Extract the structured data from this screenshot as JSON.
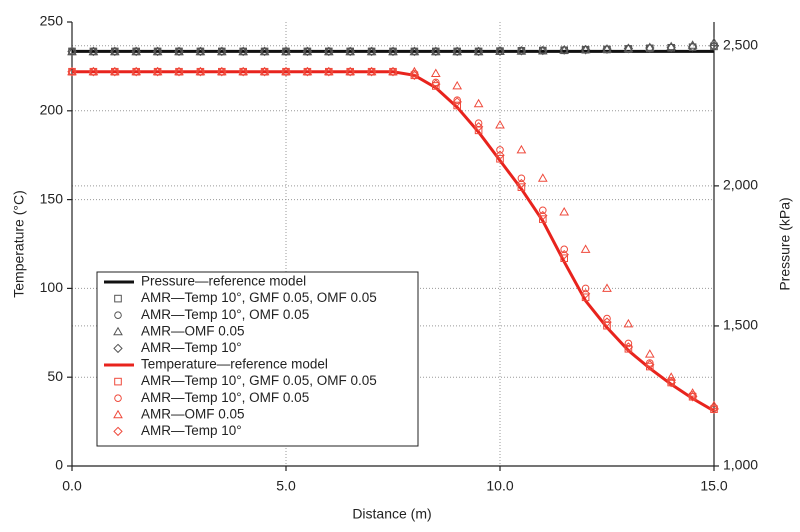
{
  "chart_data": {
    "type": "line",
    "x_label": "Distance (m)",
    "y_label": "Temperature (°C)",
    "y2_label": "Pressure (kPa)",
    "x": [
      0,
      0.5,
      1,
      1.5,
      2,
      2.5,
      3,
      3.5,
      4,
      4.5,
      5,
      5.5,
      6,
      6.5,
      7,
      7.5,
      8,
      8.5,
      9,
      9.5,
      10,
      10.5,
      11,
      11.5,
      12,
      12.5,
      13,
      13.5,
      14,
      14.5,
      15
    ],
    "xlim": [
      0,
      15
    ],
    "xticks": [
      {
        "value": 0,
        "label": "0.0"
      },
      {
        "value": 5,
        "label": "5.0"
      },
      {
        "value": 10,
        "label": "10.0"
      },
      {
        "value": 15,
        "label": "15.0"
      }
    ],
    "ylim": [
      0,
      250
    ],
    "yticks": [
      0,
      50,
      100,
      150,
      200,
      250
    ],
    "y2lim": [
      1000,
      2585
    ],
    "y2ticks": [
      {
        "value": 1000,
        "label": "1,000"
      },
      {
        "value": 1500,
        "label": "1,500"
      },
      {
        "value": 2000,
        "label": "2,000"
      },
      {
        "value": 2500,
        "label": "2,500"
      }
    ],
    "grid": true,
    "legend": "lower left",
    "series": [
      {
        "name": "Pressure—reference model",
        "color": "#111111",
        "marker": "line",
        "axis": "y2",
        "values": [
          2480,
          2480,
          2480,
          2480,
          2480,
          2480,
          2480,
          2480,
          2480,
          2480,
          2480,
          2480,
          2480,
          2480,
          2480,
          2480,
          2480,
          2480,
          2480,
          2480,
          2480,
          2480,
          2480,
          2480,
          2480,
          2480,
          2480,
          2480,
          2480,
          2480,
          2480
        ]
      },
      {
        "name": "AMR—Temp 10°, GMF 0.05, OMF 0.05",
        "color": "#555555",
        "marker": "square",
        "axis": "y2",
        "values": [
          2480,
          2480,
          2480,
          2480,
          2480,
          2480,
          2480,
          2480,
          2480,
          2480,
          2480,
          2480,
          2480,
          2480,
          2480,
          2480,
          2480,
          2480,
          2480,
          2480,
          2481,
          2482,
          2483,
          2484,
          2486,
          2487,
          2489,
          2491,
          2493,
          2495,
          2498
        ]
      },
      {
        "name": "AMR—Temp 10°, OMF 0.05",
        "color": "#555555",
        "marker": "circle",
        "axis": "y2",
        "values": [
          2481,
          2481,
          2481,
          2481,
          2481,
          2481,
          2481,
          2481,
          2481,
          2481,
          2481,
          2481,
          2481,
          2481,
          2481,
          2481,
          2481,
          2481,
          2481,
          2481,
          2482,
          2483,
          2484,
          2485,
          2487,
          2488,
          2490,
          2492,
          2494,
          2496,
          2499
        ]
      },
      {
        "name": "AMR—OMF 0.05",
        "color": "#555555",
        "marker": "triangle",
        "axis": "y2",
        "values": [
          2479,
          2479,
          2479,
          2479,
          2479,
          2479,
          2479,
          2479,
          2479,
          2479,
          2479,
          2479,
          2479,
          2479,
          2479,
          2479,
          2479,
          2479,
          2479,
          2479,
          2480,
          2481,
          2482,
          2484,
          2486,
          2488,
          2491,
          2494,
          2497,
          2502,
          2512
        ]
      },
      {
        "name": "AMR—Temp 10°",
        "color": "#555555",
        "marker": "diamond",
        "axis": "y2",
        "values": [
          2480,
          2480,
          2480,
          2480,
          2480,
          2480,
          2480,
          2480,
          2480,
          2480,
          2480,
          2480,
          2480,
          2480,
          2480,
          2480,
          2480,
          2480,
          2480,
          2480,
          2481,
          2482,
          2483,
          2485,
          2486,
          2488,
          2490,
          2492,
          2494,
          2496,
          2499
        ]
      },
      {
        "name": "Temperature—reference model",
        "color": "#e8231d",
        "marker": "line",
        "values": [
          222,
          222,
          222,
          222,
          222,
          222,
          222,
          222,
          222,
          222,
          222,
          222,
          222,
          222,
          222,
          222,
          220,
          213,
          202,
          188,
          172,
          156,
          138,
          115,
          93,
          78,
          65,
          55,
          46,
          38,
          31
        ]
      },
      {
        "name": "AMR—Temp 10°, GMF 0.05, OMF 0.05",
        "color": "#ef4a3c",
        "marker": "square",
        "values": [
          222,
          222,
          222,
          222,
          222,
          222,
          222,
          222,
          222,
          222,
          222,
          222,
          222,
          222,
          222,
          222,
          220,
          214,
          203,
          189,
          173,
          157,
          139,
          117,
          95,
          79,
          66,
          56,
          47,
          39,
          32
        ]
      },
      {
        "name": "AMR—Temp 10°, OMF 0.05",
        "color": "#ef4a3c",
        "marker": "circle",
        "values": [
          222,
          222,
          222,
          222,
          222,
          222,
          222,
          222,
          222,
          222,
          222,
          222,
          222,
          222,
          222,
          222,
          221,
          216,
          206,
          193,
          178,
          162,
          144,
          122,
          100,
          83,
          69,
          58,
          48,
          40,
          33
        ]
      },
      {
        "name": "AMR—OMF 0.05",
        "color": "#ef4a3c",
        "marker": "triangle",
        "values": [
          222,
          222,
          222,
          222,
          222,
          222,
          222,
          222,
          222,
          222,
          222,
          222,
          222,
          222,
          222,
          222,
          222,
          221,
          214,
          204,
          192,
          178,
          162,
          143,
          122,
          100,
          80,
          63,
          50,
          41,
          34
        ]
      },
      {
        "name": "AMR—Temp 10°",
        "color": "#ef4a3c",
        "marker": "diamond",
        "values": [
          222,
          222,
          222,
          222,
          222,
          222,
          222,
          222,
          222,
          222,
          222,
          222,
          222,
          222,
          222,
          222,
          220,
          215,
          205,
          191,
          175,
          159,
          141,
          119,
          97,
          81,
          67,
          57,
          47,
          39,
          32
        ]
      }
    ]
  }
}
